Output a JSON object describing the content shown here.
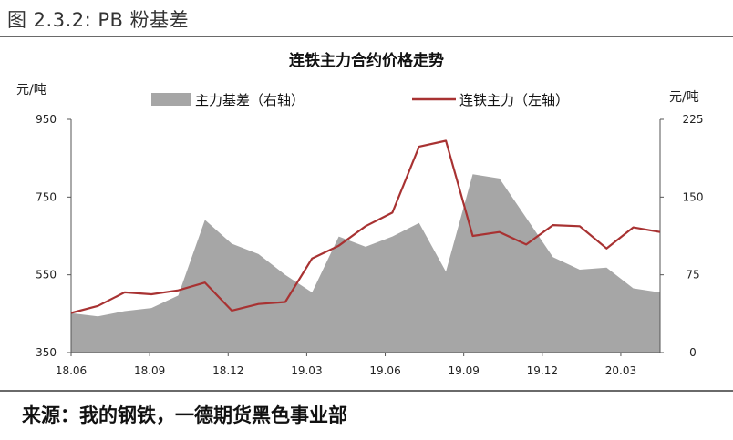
{
  "figure_caption": "图 2.3.2:  PB 粉基差",
  "source": "来源：我的钢铁，一德期货黑色事业部",
  "chart_data": {
    "type": "line+area",
    "title": "连铁主力合约价格走势",
    "left_unit": "元/吨",
    "right_unit": "元/吨",
    "x_ticks": [
      "18.06",
      "18.09",
      "18.12",
      "19.03",
      "19.06",
      "19.09",
      "19.12",
      "20.03"
    ],
    "left_axis": {
      "min": 350,
      "max": 950,
      "ticks": [
        "350",
        "550",
        "750",
        "950"
      ]
    },
    "right_axis": {
      "min": 0,
      "max": 225,
      "ticks": [
        "0",
        "75",
        "150",
        "225"
      ]
    },
    "grid": false,
    "legend_position": "top",
    "series": [
      {
        "name": "主力基差（右轴）",
        "kind": "area",
        "axis": "right",
        "color": "#a6a6a6",
        "x": [
          "18.06",
          "18.07",
          "18.08",
          "18.09",
          "18.10",
          "18.11",
          "18.12",
          "19.01",
          "19.02",
          "19.03",
          "19.04",
          "19.05",
          "19.06",
          "19.07",
          "19.08",
          "19.09",
          "19.10",
          "19.11",
          "19.12",
          "20.01",
          "20.02",
          "20.03",
          "20.04"
        ],
        "values": [
          38,
          35,
          40,
          43,
          55,
          128,
          105,
          95,
          75,
          58,
          112,
          102,
          112,
          125,
          78,
          172,
          168,
          130,
          92,
          80,
          82,
          62,
          58
        ]
      },
      {
        "name": "连铁主力（左轴）",
        "kind": "line",
        "axis": "left",
        "color": "#a83232",
        "x": [
          "18.06",
          "18.07",
          "18.08",
          "18.09",
          "18.10",
          "18.11",
          "18.12",
          "19.01",
          "19.02",
          "19.03",
          "19.04",
          "19.05",
          "19.06",
          "19.07",
          "19.08",
          "19.09",
          "19.10",
          "19.11",
          "19.12",
          "20.01",
          "20.02",
          "20.03",
          "20.04"
        ],
        "values": [
          452,
          470,
          505,
          500,
          510,
          530,
          458,
          475,
          480,
          592,
          625,
          675,
          710,
          880,
          895,
          650,
          660,
          628,
          678,
          675,
          618,
          672,
          660
        ]
      }
    ]
  }
}
